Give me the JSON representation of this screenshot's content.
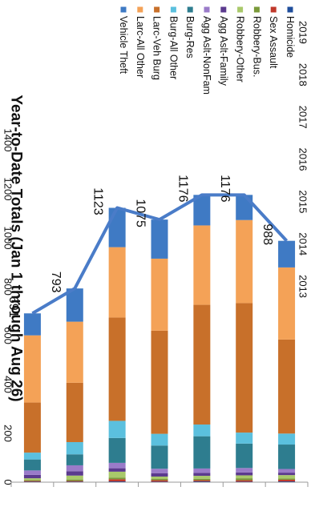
{
  "chart_data": {
    "type": "bar",
    "stacked": true,
    "rotated": "90-clockwise",
    "title": "Year-to-Date Totals (Jan 1 through Aug 26)",
    "categories": [
      "2013",
      "2014",
      "2015",
      "2016",
      "2017",
      "2018",
      "2019"
    ],
    "yticks": [
      "0",
      "200",
      "400",
      "600",
      "800",
      "1000",
      "1200",
      "1400"
    ],
    "ylim": [
      0,
      1400
    ],
    "legend_position": "right",
    "series": [
      {
        "name": "Homicide",
        "color": "#1F4E9C",
        "values": [
          3,
          2,
          3,
          2,
          3,
          2,
          2
        ]
      },
      {
        "name": "Sex Assault",
        "color": "#C0392B",
        "values": [
          7,
          6,
          5,
          6,
          9,
          3,
          3
        ]
      },
      {
        "name": "Robbery-Bus.",
        "color": "#7A9A3A",
        "values": [
          5,
          8,
          6,
          5,
          7,
          6,
          3
        ]
      },
      {
        "name": "Robbery-Other",
        "color": "#A9C96A",
        "values": [
          14,
          12,
          12,
          10,
          24,
          16,
          8
        ]
      },
      {
        "name": "Agg Aslt-Family",
        "color": "#5B3A8E",
        "values": [
          10,
          12,
          12,
          14,
          14,
          18,
          14
        ]
      },
      {
        "name": "Agg Aslt-NonFam",
        "color": "#9A7BC9",
        "values": [
          15,
          18,
          18,
          18,
          22,
          24,
          18
        ]
      },
      {
        "name": "Burg-Res",
        "color": "#2E7D8F",
        "values": [
          100,
          100,
          132,
          95,
          102,
          45,
          45
        ]
      },
      {
        "name": "Burg-All Other",
        "color": "#5BC0DE",
        "values": [
          45,
          45,
          48,
          48,
          70,
          50,
          28
        ]
      },
      {
        "name": "Larc-Veh Burg",
        "color": "#C8702A",
        "values": [
          385,
          530,
          490,
          422,
          423,
          243,
          205
        ]
      },
      {
        "name": "Larc-All Other",
        "color": "#F4A257",
        "values": [
          295,
          340,
          325,
          295,
          288,
          250,
          275
        ]
      },
      {
        "name": "Vehicle Theft",
        "color": "#3F7AC4",
        "values": [
          109,
          103,
          125,
          160,
          161,
          136,
          90
        ]
      }
    ],
    "totals": [
      988,
      1176,
      1176,
      1075,
      1123,
      793,
      691
    ],
    "total_line_color": "#4A7CC8",
    "grid": false
  }
}
